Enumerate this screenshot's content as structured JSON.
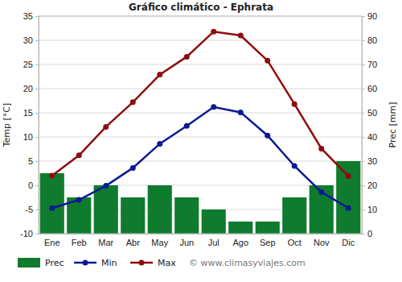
{
  "chart_data": {
    "type": "bar",
    "title": "Gráfico climático - Ephrata",
    "y_label": "Temp [°C]",
    "y2_label": "Prec [mm]",
    "annotations": [
      "© www.climasyviajes.com"
    ],
    "categories": [
      "Ene",
      "Feb",
      "Mar",
      "Abr",
      "May",
      "Jun",
      "Jul",
      "Ago",
      "Sep",
      "Oct",
      "Nov",
      "Dic"
    ],
    "series": [
      {
        "name": "Prec",
        "type": "bar",
        "axis": "y2",
        "color": "#0f7b2e",
        "values": [
          25,
          15,
          20,
          15,
          20,
          15,
          10,
          5,
          5,
          15,
          20,
          30
        ]
      },
      {
        "name": "Min",
        "type": "line",
        "color": "#0a1a94",
        "marker": "circle",
        "values": [
          -4.7,
          -3.0,
          -0.1,
          3.6,
          8.6,
          12.3,
          16.2,
          15.1,
          10.3,
          4.0,
          -1.4,
          -4.7
        ]
      },
      {
        "name": "Max",
        "type": "line",
        "color": "#8e0c0c",
        "marker": "circle",
        "values": [
          2.0,
          6.2,
          12.1,
          17.2,
          22.9,
          26.6,
          31.8,
          31.0,
          25.8,
          16.8,
          7.6,
          1.9
        ]
      }
    ],
    "ylim": [
      -10,
      35
    ],
    "yticks": [
      -10,
      -5,
      0,
      5,
      10,
      15,
      20,
      25,
      30,
      35
    ],
    "y2lim": [
      0,
      90
    ],
    "y2ticks": [
      0,
      10,
      20,
      30,
      40,
      50,
      60,
      70,
      80,
      90
    ],
    "grid": true,
    "legend": "bottom"
  }
}
